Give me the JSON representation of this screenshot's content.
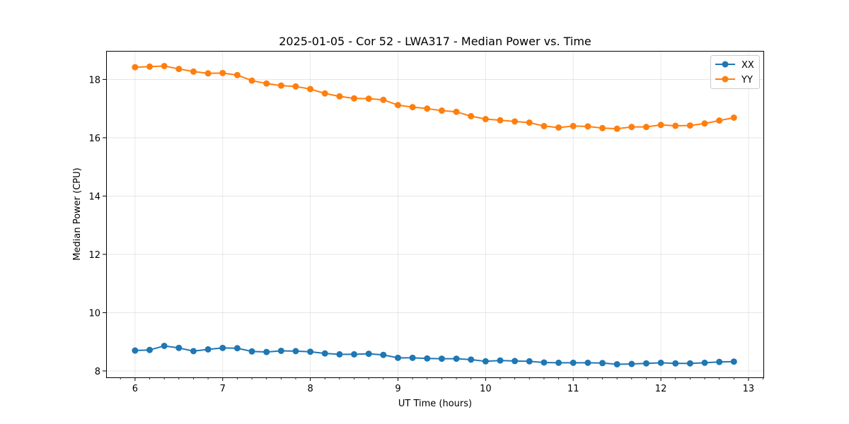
{
  "chart_data": {
    "type": "line",
    "title": "2025-01-05 - Cor 52 - LWA317 - Median Power vs. Time",
    "xlabel": "UT Time (hours)",
    "ylabel": "Median Power (CPU)",
    "xlim": [
      5.67,
      13.17
    ],
    "ylim": [
      7.78,
      18.98
    ],
    "xticks": [
      6,
      7,
      8,
      9,
      10,
      11,
      12,
      13
    ],
    "xticks_minor": [
      5.8333,
      6.1667,
      6.3333,
      6.5,
      6.6667,
      6.8333,
      7.1667,
      7.3333,
      7.5,
      7.6667,
      7.8333,
      8.1667,
      8.3333,
      8.5,
      8.6667,
      8.8333,
      9.1667,
      9.3333,
      9.5,
      9.6667,
      9.8333,
      10.1667,
      10.3333,
      10.5,
      10.6667,
      10.8333,
      11.1667,
      11.3333,
      11.5,
      11.6667,
      11.8333,
      12.1667,
      12.3333,
      12.5,
      12.6667,
      12.8333,
      13.1667
    ],
    "yticks": [
      8,
      10,
      12,
      14,
      16,
      18
    ],
    "grid": true,
    "legend_position": "top-right",
    "x": [
      6.0,
      6.1667,
      6.3333,
      6.5,
      6.6667,
      6.8333,
      7.0,
      7.1667,
      7.3333,
      7.5,
      7.6667,
      7.8333,
      8.0,
      8.1667,
      8.3333,
      8.5,
      8.6667,
      8.8333,
      9.0,
      9.1667,
      9.3333,
      9.5,
      9.6667,
      9.8333,
      10.0,
      10.1667,
      10.3333,
      10.5,
      10.6667,
      10.8333,
      11.0,
      11.1667,
      11.3333,
      11.5,
      11.6667,
      11.8333,
      12.0,
      12.1667,
      12.3333,
      12.5,
      12.6667,
      12.8333
    ],
    "series": [
      {
        "name": "XX",
        "color": "#1f77b4",
        "values": [
          8.7,
          8.72,
          8.86,
          8.79,
          8.68,
          8.74,
          8.79,
          8.78,
          8.67,
          8.65,
          8.69,
          8.68,
          8.66,
          8.6,
          8.57,
          8.57,
          8.59,
          8.55,
          8.45,
          8.45,
          8.43,
          8.42,
          8.42,
          8.39,
          8.33,
          8.36,
          8.34,
          8.33,
          8.29,
          8.28,
          8.28,
          8.28,
          8.27,
          8.23,
          8.24,
          8.26,
          8.28,
          8.26,
          8.26,
          8.28,
          8.31,
          8.32
        ]
      },
      {
        "name": "YY",
        "color": "#ff7f0e",
        "values": [
          18.42,
          18.44,
          18.46,
          18.36,
          18.27,
          18.21,
          18.22,
          18.15,
          17.96,
          17.86,
          17.79,
          17.76,
          17.67,
          17.52,
          17.42,
          17.35,
          17.34,
          17.3,
          17.12,
          17.05,
          17.0,
          16.93,
          16.89,
          16.74,
          16.64,
          16.6,
          16.56,
          16.52,
          16.4,
          16.35,
          16.4,
          16.39,
          16.33,
          16.31,
          16.37,
          16.37,
          16.44,
          16.41,
          16.42,
          16.49,
          16.59,
          16.69
        ]
      }
    ]
  }
}
